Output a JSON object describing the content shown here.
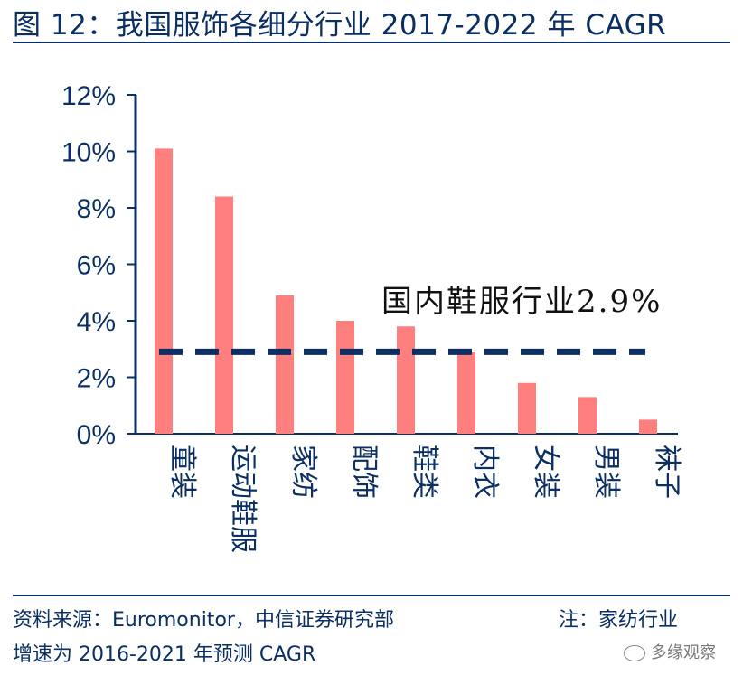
{
  "header": {
    "title": "图 12：我国服饰各细分行业 2017-2022 年 CAGR"
  },
  "footer": {
    "source": "资料来源：Euromonitor，中信证券研究部",
    "note": "注：家纺行业",
    "note_cont": "增速为 2016-2021 年预测 CAGR"
  },
  "watermark": {
    "text": "多缘观察",
    "icon": "wechat-icon"
  },
  "colors": {
    "bar": "#ff7f7f",
    "axis": "#0b2f63",
    "reference": "#0b2f63"
  },
  "chart_data": {
    "type": "bar",
    "title": "我国服饰各细分行业 2017-2022 年 CAGR",
    "xlabel": "",
    "ylabel": "",
    "ylim": [
      0,
      12
    ],
    "yticks": [
      0,
      2,
      4,
      6,
      8,
      10,
      12
    ],
    "ytick_labels": [
      "0%",
      "2%",
      "4%",
      "6%",
      "8%",
      "10%",
      "12%"
    ],
    "categories": [
      "童装",
      "运动鞋服",
      "家纺",
      "配饰",
      "鞋类",
      "内衣",
      "女装",
      "男装",
      "袜子"
    ],
    "values": [
      10.1,
      8.4,
      4.9,
      4.0,
      3.8,
      2.9,
      1.8,
      1.3,
      0.5
    ],
    "reference_line": {
      "value": 2.9,
      "label": "国内鞋服行业2.9%",
      "style": "dashed"
    },
    "grid": false,
    "legend": "none"
  }
}
